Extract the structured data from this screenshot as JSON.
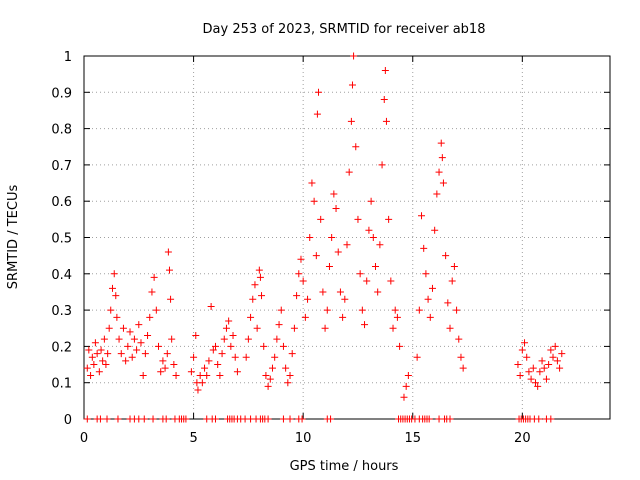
{
  "chart_data": {
    "type": "scatter",
    "title": "Day 253 of 2023, SRMTID for receiver ab18",
    "xlabel": "GPS time / hours",
    "ylabel": "SRMTID / TECUs",
    "xlim": [
      0,
      24
    ],
    "ylim": [
      0,
      1
    ],
    "xticks": [
      0,
      5,
      10,
      15,
      20
    ],
    "yticks": [
      0,
      0.1,
      0.2,
      0.3,
      0.4,
      0.5,
      0.6,
      0.7,
      0.8,
      0.9,
      1
    ],
    "xtick_labels": [
      "0",
      "5",
      "10",
      "15",
      "20"
    ],
    "ytick_labels": [
      "0",
      "0.1",
      "0.2",
      "0.3",
      "0.4",
      "0.5",
      "0.6",
      "0.7",
      "0.8",
      "0.9",
      "1"
    ],
    "grid": true,
    "marker": "+",
    "color": "#ff0000",
    "series": [
      {
        "name": "SRMTID",
        "points": [
          [
            0.15,
            0.14
          ],
          [
            0.22,
            0.19
          ],
          [
            0.3,
            0.12
          ],
          [
            0.38,
            0.17
          ],
          [
            0.45,
            0.15
          ],
          [
            0.52,
            0.21
          ],
          [
            0.6,
            0.18
          ],
          [
            0.7,
            0.13
          ],
          [
            0.78,
            0.19
          ],
          [
            0.85,
            0.16
          ],
          [
            0.93,
            0.22
          ],
          [
            1.0,
            0.15
          ],
          [
            1.08,
            0.18
          ],
          [
            1.15,
            0.25
          ],
          [
            1.22,
            0.3
          ],
          [
            1.3,
            0.36
          ],
          [
            1.38,
            0.4
          ],
          [
            1.45,
            0.34
          ],
          [
            1.5,
            0.28
          ],
          [
            1.6,
            0.22
          ],
          [
            1.7,
            0.18
          ],
          [
            1.8,
            0.25
          ],
          [
            1.9,
            0.16
          ],
          [
            2.0,
            0.2
          ],
          [
            2.1,
            0.24
          ],
          [
            2.2,
            0.17
          ],
          [
            2.3,
            0.22
          ],
          [
            2.4,
            0.19
          ],
          [
            2.5,
            0.26
          ],
          [
            2.6,
            0.21
          ],
          [
            2.7,
            0.12
          ],
          [
            2.8,
            0.18
          ],
          [
            2.9,
            0.23
          ],
          [
            3.0,
            0.28
          ],
          [
            3.1,
            0.35
          ],
          [
            3.2,
            0.39
          ],
          [
            3.3,
            0.3
          ],
          [
            3.4,
            0.2
          ],
          [
            3.5,
            0.13
          ],
          [
            3.6,
            0.16
          ],
          [
            3.7,
            0.14
          ],
          [
            3.8,
            0.18
          ],
          [
            3.85,
            0.46
          ],
          [
            3.9,
            0.41
          ],
          [
            3.95,
            0.33
          ],
          [
            4.0,
            0.22
          ],
          [
            4.1,
            0.15
          ],
          [
            4.2,
            0.12
          ],
          [
            4.9,
            0.13
          ],
          [
            5.0,
            0.17
          ],
          [
            5.1,
            0.23
          ],
          [
            5.15,
            0.1
          ],
          [
            5.2,
            0.08
          ],
          [
            5.3,
            0.12
          ],
          [
            5.4,
            0.1
          ],
          [
            5.5,
            0.14
          ],
          [
            5.6,
            0.12
          ],
          [
            5.7,
            0.16
          ],
          [
            5.8,
            0.31
          ],
          [
            5.9,
            0.19
          ],
          [
            6.0,
            0.2
          ],
          [
            6.1,
            0.15
          ],
          [
            6.2,
            0.12
          ],
          [
            6.3,
            0.18
          ],
          [
            6.4,
            0.22
          ],
          [
            6.5,
            0.25
          ],
          [
            6.6,
            0.27
          ],
          [
            6.7,
            0.2
          ],
          [
            6.8,
            0.23
          ],
          [
            6.9,
            0.17
          ],
          [
            7.0,
            0.13
          ],
          [
            7.4,
            0.17
          ],
          [
            7.5,
            0.22
          ],
          [
            7.6,
            0.28
          ],
          [
            7.7,
            0.33
          ],
          [
            7.8,
            0.37
          ],
          [
            7.9,
            0.25
          ],
          [
            8.0,
            0.41
          ],
          [
            8.05,
            0.39
          ],
          [
            8.1,
            0.34
          ],
          [
            8.2,
            0.2
          ],
          [
            8.3,
            0.12
          ],
          [
            8.4,
            0.09
          ],
          [
            8.5,
            0.11
          ],
          [
            8.6,
            0.14
          ],
          [
            8.7,
            0.17
          ],
          [
            8.8,
            0.22
          ],
          [
            8.9,
            0.26
          ],
          [
            9.0,
            0.3
          ],
          [
            9.1,
            0.2
          ],
          [
            9.2,
            0.14
          ],
          [
            9.3,
            0.1
          ],
          [
            9.4,
            0.12
          ],
          [
            9.5,
            0.18
          ],
          [
            9.6,
            0.25
          ],
          [
            9.7,
            0.34
          ],
          [
            9.8,
            0.4
          ],
          [
            9.9,
            0.44
          ],
          [
            10.0,
            0.38
          ],
          [
            10.1,
            0.28
          ],
          [
            10.2,
            0.33
          ],
          [
            10.3,
            0.5
          ],
          [
            10.4,
            0.65
          ],
          [
            10.5,
            0.6
          ],
          [
            10.6,
            0.45
          ],
          [
            10.65,
            0.84
          ],
          [
            10.7,
            0.9
          ],
          [
            10.8,
            0.55
          ],
          [
            10.9,
            0.35
          ],
          [
            11.0,
            0.25
          ],
          [
            11.1,
            0.3
          ],
          [
            11.2,
            0.42
          ],
          [
            11.3,
            0.5
          ],
          [
            11.4,
            0.62
          ],
          [
            11.5,
            0.58
          ],
          [
            11.6,
            0.46
          ],
          [
            11.7,
            0.35
          ],
          [
            11.8,
            0.28
          ],
          [
            11.9,
            0.33
          ],
          [
            12.0,
            0.48
          ],
          [
            12.1,
            0.68
          ],
          [
            12.2,
            0.82
          ],
          [
            12.25,
            0.92
          ],
          [
            12.3,
            1.0
          ],
          [
            12.4,
            0.75
          ],
          [
            12.5,
            0.55
          ],
          [
            12.6,
            0.4
          ],
          [
            12.7,
            0.3
          ],
          [
            12.8,
            0.26
          ],
          [
            12.9,
            0.38
          ],
          [
            13.0,
            0.52
          ],
          [
            13.1,
            0.6
          ],
          [
            13.2,
            0.5
          ],
          [
            13.3,
            0.42
          ],
          [
            13.4,
            0.35
          ],
          [
            13.5,
            0.48
          ],
          [
            13.6,
            0.7
          ],
          [
            13.7,
            0.88
          ],
          [
            13.75,
            0.96
          ],
          [
            13.8,
            0.82
          ],
          [
            13.9,
            0.55
          ],
          [
            14.0,
            0.38
          ],
          [
            14.1,
            0.25
          ],
          [
            14.2,
            0.3
          ],
          [
            14.3,
            0.28
          ],
          [
            14.4,
            0.2
          ],
          [
            14.6,
            0.06
          ],
          [
            14.7,
            0.09
          ],
          [
            14.8,
            0.12
          ],
          [
            15.2,
            0.17
          ],
          [
            15.3,
            0.3
          ],
          [
            15.4,
            0.56
          ],
          [
            15.5,
            0.47
          ],
          [
            15.6,
            0.4
          ],
          [
            15.7,
            0.33
          ],
          [
            15.8,
            0.28
          ],
          [
            15.9,
            0.36
          ],
          [
            16.0,
            0.52
          ],
          [
            16.1,
            0.62
          ],
          [
            16.2,
            0.68
          ],
          [
            16.3,
            0.76
          ],
          [
            16.35,
            0.72
          ],
          [
            16.4,
            0.65
          ],
          [
            16.5,
            0.45
          ],
          [
            16.6,
            0.32
          ],
          [
            16.7,
            0.25
          ],
          [
            16.8,
            0.38
          ],
          [
            16.9,
            0.42
          ],
          [
            17.0,
            0.3
          ],
          [
            17.1,
            0.22
          ],
          [
            17.2,
            0.17
          ],
          [
            17.3,
            0.14
          ],
          [
            19.8,
            0.15
          ],
          [
            19.9,
            0.12
          ],
          [
            20.0,
            0.19
          ],
          [
            20.1,
            0.21
          ],
          [
            20.2,
            0.17
          ],
          [
            20.3,
            0.13
          ],
          [
            20.4,
            0.11
          ],
          [
            20.5,
            0.14
          ],
          [
            20.6,
            0.1
          ],
          [
            20.7,
            0.09
          ],
          [
            20.8,
            0.13
          ],
          [
            20.9,
            0.16
          ],
          [
            21.0,
            0.14
          ],
          [
            21.1,
            0.11
          ],
          [
            21.2,
            0.15
          ],
          [
            21.3,
            0.19
          ],
          [
            21.4,
            0.17
          ],
          [
            21.5,
            0.2
          ],
          [
            21.6,
            0.16
          ],
          [
            21.7,
            0.14
          ],
          [
            21.8,
            0.18
          ]
        ],
        "zero_marks": [
          0.15,
          0.6,
          0.75,
          1.05,
          1.55,
          2.1,
          2.3,
          2.5,
          2.75,
          3.15,
          3.6,
          3.75,
          4.15,
          4.35,
          4.45,
          4.55,
          4.65,
          5.6,
          5.85,
          6.0,
          6.55,
          6.65,
          6.75,
          6.85,
          7.0,
          7.15,
          7.35,
          7.6,
          7.85,
          8.05,
          8.15,
          8.25,
          8.4,
          9.1,
          9.4,
          9.8,
          9.95,
          11.1,
          11.25,
          14.35,
          14.45,
          14.55,
          14.65,
          14.75,
          14.85,
          14.95,
          15.1,
          15.3,
          15.45,
          15.55,
          15.65,
          15.75,
          16.2,
          16.45,
          16.55,
          16.7,
          19.85,
          19.95,
          20.05,
          20.15,
          20.25,
          20.35,
          20.55,
          20.75,
          21.1,
          21.3
        ]
      }
    ]
  }
}
